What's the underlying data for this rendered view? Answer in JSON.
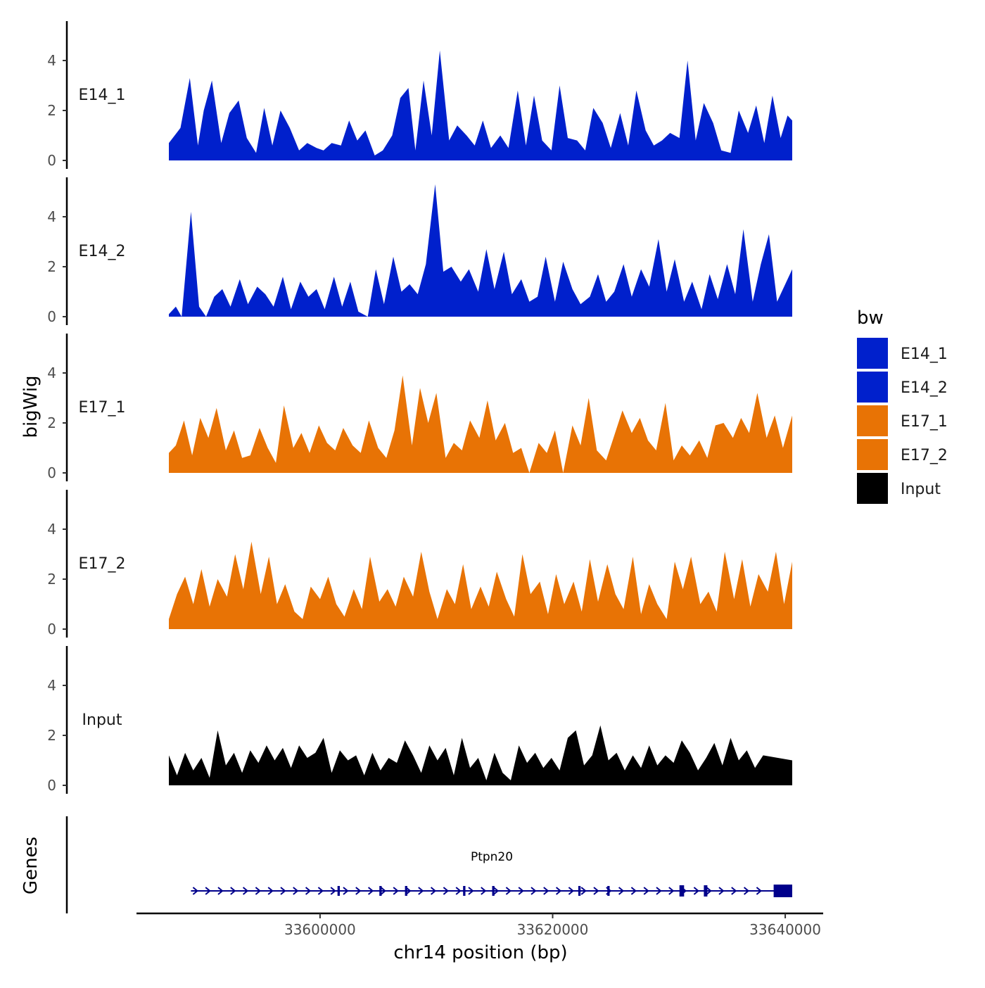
{
  "chart_data": {
    "type": "area",
    "title": "",
    "xlabel": "chr14 position (bp)",
    "ylabel": "bigWig",
    "genes_label": "Genes",
    "xlim": [
      33582500,
      33641500
    ],
    "x_ticks": [
      33600000,
      33620000,
      33640000
    ],
    "x_tick_labels": [
      "33600000",
      "33620000",
      "33640000"
    ],
    "ylim": [
      0,
      5.5
    ],
    "y_ticks": [
      0,
      2,
      4
    ],
    "y_tick_labels": [
      "0",
      "2",
      "4"
    ],
    "signal_range": [
      33587000,
      33640600
    ],
    "legend": {
      "title": "bw",
      "position": "right",
      "entries": [
        {
          "label": "E14_1",
          "color": "#0020CC"
        },
        {
          "label": "E14_2",
          "color": "#0020CC"
        },
        {
          "label": "E17_1",
          "color": "#E87305"
        },
        {
          "label": "E17_2",
          "color": "#E87305"
        },
        {
          "label": "Input",
          "color": "#000000"
        }
      ]
    },
    "series": [
      {
        "name": "E14_1",
        "color": "#0020CC",
        "x": [
          33587000,
          33588000,
          33588800,
          33589500,
          33590000,
          33590700,
          33591500,
          33592200,
          33593000,
          33593700,
          33594500,
          33595200,
          33595900,
          33596600,
          33597400,
          33598200,
          33598900,
          33599700,
          33600300,
          33601000,
          33601800,
          33602500,
          33603200,
          33603900,
          33604700,
          33605400,
          33606200,
          33606900,
          33607600,
          33608200,
          33608900,
          33609600,
          33610300,
          33611100,
          33611800,
          33612600,
          33613300,
          33614000,
          33614700,
          33615500,
          33616200,
          33617000,
          33617700,
          33618400,
          33619100,
          33619900,
          33620600,
          33621300,
          33622100,
          33622800,
          33623500,
          33624300,
          33625000,
          33625800,
          33626500,
          33627200,
          33628000,
          33628700,
          33629400,
          33630100,
          33630900,
          33631600,
          33632300,
          33633000,
          33633800,
          33634500,
          33635300,
          33636000,
          33636800,
          33637500,
          33638200,
          33638900,
          33639600,
          33640200,
          33640600
        ],
        "values": [
          0.7,
          1.3,
          3.3,
          0.6,
          2.0,
          3.2,
          0.7,
          1.9,
          2.4,
          0.9,
          0.3,
          2.1,
          0.6,
          2.0,
          1.3,
          0.4,
          0.7,
          0.5,
          0.4,
          0.7,
          0.6,
          1.6,
          0.8,
          1.2,
          0.2,
          0.4,
          1.0,
          2.5,
          2.9,
          0.4,
          3.2,
          1.0,
          4.4,
          0.8,
          1.4,
          1.0,
          0.6,
          1.6,
          0.5,
          1.0,
          0.5,
          2.8,
          0.6,
          2.6,
          0.8,
          0.4,
          3.0,
          0.9,
          0.8,
          0.4,
          2.1,
          1.5,
          0.5,
          1.9,
          0.6,
          2.8,
          1.2,
          0.6,
          0.8,
          1.1,
          0.9,
          4.0,
          0.8,
          2.3,
          1.5,
          0.4,
          0.3,
          2.0,
          1.1,
          2.2,
          0.7,
          2.6,
          0.9,
          1.8,
          1.6
        ]
      },
      {
        "name": "E14_2",
        "color": "#0020CC",
        "x": [
          33587000,
          33587600,
          33588100,
          33588900,
          33589600,
          33590200,
          33590900,
          33591600,
          33592300,
          33593100,
          33593800,
          33594600,
          33595300,
          33596000,
          33596800,
          33597500,
          33598300,
          33599000,
          33599700,
          33600400,
          33601200,
          33601900,
          33602600,
          33603300,
          33604100,
          33604800,
          33605500,
          33606300,
          33607000,
          33607700,
          33608400,
          33609100,
          33609900,
          33610600,
          33611300,
          33612100,
          33612800,
          33613600,
          33614300,
          33615000,
          33615800,
          33616500,
          33617300,
          33618000,
          33618700,
          33619400,
          33620200,
          33620900,
          33621700,
          33622400,
          33623200,
          33623900,
          33624600,
          33625300,
          33626100,
          33626800,
          33627600,
          33628300,
          33629100,
          33629800,
          33630500,
          33631300,
          33632000,
          33632800,
          33633500,
          33634200,
          33635000,
          33635700,
          33636400,
          33637200,
          33637900,
          33638600,
          33639300,
          33640000,
          33640600
        ],
        "values": [
          0.1,
          0.4,
          0.0,
          4.2,
          0.4,
          0.0,
          0.8,
          1.1,
          0.4,
          1.5,
          0.5,
          1.2,
          0.9,
          0.4,
          1.6,
          0.3,
          1.4,
          0.8,
          1.1,
          0.3,
          1.6,
          0.4,
          1.4,
          0.2,
          0.0,
          1.9,
          0.5,
          2.4,
          1.0,
          1.3,
          0.9,
          2.1,
          5.3,
          1.8,
          2.0,
          1.4,
          1.9,
          1.0,
          2.7,
          1.1,
          2.6,
          0.9,
          1.5,
          0.6,
          0.8,
          2.4,
          0.6,
          2.2,
          1.1,
          0.5,
          0.8,
          1.7,
          0.6,
          1.0,
          2.1,
          0.8,
          1.9,
          1.2,
          3.1,
          1.0,
          2.3,
          0.6,
          1.4,
          0.3,
          1.7,
          0.7,
          2.1,
          0.9,
          3.5,
          0.6,
          2.1,
          3.3,
          0.6,
          1.3,
          1.9
        ]
      },
      {
        "name": "E17_1",
        "color": "#E87305",
        "x": [
          33587000,
          33587600,
          33588300,
          33589000,
          33589700,
          33590400,
          33591100,
          33591900,
          33592600,
          33593300,
          33594000,
          33594800,
          33595500,
          33596200,
          33596900,
          33597700,
          33598400,
          33599100,
          33599900,
          33600600,
          33601300,
          33602000,
          33602800,
          33603500,
          33604200,
          33605000,
          33605700,
          33606400,
          33607100,
          33607900,
          33608600,
          33609300,
          33610000,
          33610800,
          33611500,
          33612200,
          33612900,
          33613700,
          33614400,
          33615100,
          33615900,
          33616600,
          33617300,
          33618000,
          33618800,
          33619500,
          33620200,
          33620900,
          33621700,
          33622400,
          33623100,
          33623800,
          33624600,
          33625300,
          33626000,
          33626800,
          33627500,
          33628200,
          33628900,
          33629700,
          33630400,
          33631100,
          33631800,
          33632600,
          33633300,
          33634000,
          33634700,
          33635500,
          33636200,
          33636900,
          33637600,
          33638400,
          33639100,
          33639800,
          33640600
        ],
        "values": [
          0.8,
          1.1,
          2.1,
          0.7,
          2.2,
          1.4,
          2.6,
          0.9,
          1.7,
          0.6,
          0.7,
          1.8,
          1.0,
          0.4,
          2.7,
          1.0,
          1.6,
          0.8,
          1.9,
          1.2,
          0.9,
          1.8,
          1.1,
          0.8,
          2.1,
          1.0,
          0.6,
          1.7,
          3.9,
          1.1,
          3.4,
          2.0,
          3.2,
          0.6,
          1.2,
          0.9,
          2.1,
          1.4,
          2.9,
          1.3,
          2.0,
          0.8,
          1.0,
          0.0,
          1.2,
          0.8,
          1.7,
          0.0,
          1.9,
          1.1,
          3.0,
          0.9,
          0.5,
          1.5,
          2.5,
          1.6,
          2.2,
          1.3,
          0.9,
          2.8,
          0.5,
          1.1,
          0.7,
          1.3,
          0.6,
          1.9,
          2.0,
          1.4,
          2.2,
          1.6,
          3.2,
          1.4,
          2.3,
          1.0,
          2.3
        ]
      },
      {
        "name": "E17_2",
        "color": "#E87305",
        "x": [
          33587000,
          33587700,
          33588400,
          33589100,
          33589800,
          33590500,
          33591200,
          33592000,
          33592700,
          33593400,
          33594100,
          33594900,
          33595600,
          33596300,
          33597000,
          33597800,
          33598500,
          33599200,
          33600000,
          33600700,
          33601400,
          33602100,
          33602900,
          33603600,
          33604300,
          33605100,
          33605800,
          33606500,
          33607200,
          33608000,
          33608700,
          33609400,
          33610100,
          33610900,
          33611600,
          33612300,
          33613000,
          33613800,
          33614500,
          33615200,
          33616000,
          33616700,
          33617400,
          33618100,
          33618900,
          33619600,
          33620300,
          33621000,
          33621800,
          33622500,
          33623200,
          33623900,
          33624700,
          33625400,
          33626100,
          33626900,
          33627600,
          33628300,
          33629000,
          33629800,
          33630500,
          33631200,
          33631900,
          33632700,
          33633400,
          33634100,
          33634800,
          33635600,
          33636300,
          33637000,
          33637700,
          33638500,
          33639200,
          33639900,
          33640600
        ],
        "values": [
          0.4,
          1.4,
          2.1,
          1.0,
          2.4,
          0.9,
          2.0,
          1.3,
          3.0,
          1.6,
          3.5,
          1.4,
          2.9,
          1.0,
          1.8,
          0.7,
          0.4,
          1.7,
          1.2,
          2.1,
          1.0,
          0.5,
          1.6,
          0.8,
          2.9,
          1.1,
          1.6,
          0.9,
          2.1,
          1.3,
          3.1,
          1.5,
          0.4,
          1.6,
          1.0,
          2.6,
          0.8,
          1.7,
          0.9,
          2.3,
          1.2,
          0.5,
          3.0,
          1.4,
          1.9,
          0.6,
          2.2,
          1.0,
          1.9,
          0.7,
          2.8,
          1.1,
          2.6,
          1.4,
          0.8,
          2.9,
          0.6,
          1.8,
          1.0,
          0.4,
          2.7,
          1.6,
          2.9,
          1.0,
          1.5,
          0.7,
          3.1,
          1.2,
          2.8,
          0.9,
          2.2,
          1.5,
          3.1,
          1.0,
          2.7
        ]
      },
      {
        "name": "Input",
        "color": "#000000",
        "x": [
          33587000,
          33587700,
          33588400,
          33589100,
          33589800,
          33590500,
          33591200,
          33591900,
          33592600,
          33593300,
          33594000,
          33594700,
          33595400,
          33596100,
          33596800,
          33597500,
          33598200,
          33598900,
          33599600,
          33600300,
          33601000,
          33601700,
          33602400,
          33603100,
          33603800,
          33604500,
          33605200,
          33605900,
          33606600,
          33607300,
          33608000,
          33608700,
          33609400,
          33610100,
          33610800,
          33611500,
          33612200,
          33612900,
          33613600,
          33614300,
          33615000,
          33615700,
          33616400,
          33617100,
          33617800,
          33618500,
          33619200,
          33619900,
          33620600,
          33621300,
          33622000,
          33622700,
          33623400,
          33624100,
          33624800,
          33625500,
          33626200,
          33626900,
          33627600,
          33628300,
          33629000,
          33629700,
          33630400,
          33631100,
          33631800,
          33632500,
          33633200,
          33633900,
          33634600,
          33635300,
          33636000,
          33636700,
          33637400,
          33638100,
          33640600
        ],
        "values": [
          1.2,
          0.4,
          1.3,
          0.6,
          1.1,
          0.3,
          2.2,
          0.8,
          1.3,
          0.5,
          1.4,
          0.9,
          1.6,
          1.0,
          1.5,
          0.7,
          1.6,
          1.1,
          1.3,
          1.9,
          0.5,
          1.4,
          1.0,
          1.2,
          0.4,
          1.3,
          0.6,
          1.1,
          0.9,
          1.8,
          1.2,
          0.5,
          1.6,
          1.0,
          1.5,
          0.4,
          1.9,
          0.7,
          1.1,
          0.2,
          1.3,
          0.5,
          0.2,
          1.6,
          0.9,
          1.3,
          0.7,
          1.1,
          0.6,
          1.9,
          2.2,
          0.8,
          1.2,
          2.4,
          1.0,
          1.3,
          0.6,
          1.2,
          0.7,
          1.6,
          0.8,
          1.2,
          0.9,
          1.8,
          1.3,
          0.6,
          1.1,
          1.7,
          0.8,
          1.9,
          1.0,
          1.4,
          0.7,
          1.2,
          1.0
        ]
      }
    ],
    "gene_track": {
      "name": "Ptpn20",
      "strand": "+",
      "color": "#00008B",
      "start": 33588900,
      "end": 33640600,
      "exons": [
        {
          "start": 33601500,
          "end": 33601700
        },
        {
          "start": 33605100,
          "end": 33605300
        },
        {
          "start": 33607300,
          "end": 33607500
        },
        {
          "start": 33612300,
          "end": 33612500
        },
        {
          "start": 33614800,
          "end": 33615000
        },
        {
          "start": 33622200,
          "end": 33622400
        },
        {
          "start": 33624700,
          "end": 33624900
        },
        {
          "start": 33630900,
          "end": 33631300
        },
        {
          "start": 33633000,
          "end": 33633300
        },
        {
          "start": 33639000,
          "end": 33640600
        }
      ]
    }
  }
}
